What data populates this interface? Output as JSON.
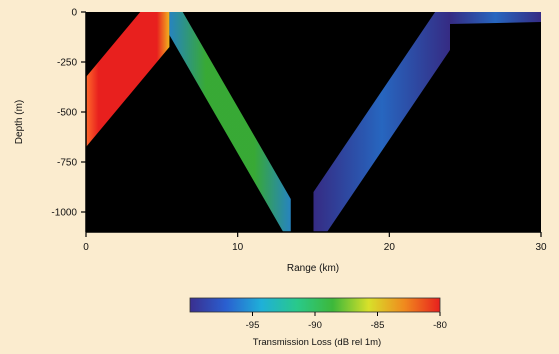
{
  "chart_data": {
    "type": "heatmap",
    "xlabel": "Range (km)",
    "ylabel": "Depth (m)",
    "xlim": [
      0,
      30
    ],
    "ylim": [
      -1100,
      0
    ],
    "x_ticks": [
      0,
      10,
      20,
      30
    ],
    "y_ticks": [
      0,
      -250,
      -500,
      -750,
      -1000
    ],
    "x_tick_labels": [
      "0",
      "10",
      "20",
      "30"
    ],
    "y_tick_labels": [
      "0",
      "-250",
      "-500",
      "-750",
      "-1000"
    ],
    "background_color": "#000000",
    "colorbar": {
      "label": "Transmission Loss (dB rel 1m)",
      "range": [
        -100,
        -80
      ],
      "ticks": [
        -95,
        -90,
        -85,
        -80
      ],
      "tick_labels": [
        "-95",
        "-90",
        "-85",
        "-80"
      ],
      "colormap": [
        "#3a2f8f",
        "#2a5fd0",
        "#1fb0d8",
        "#29c98a",
        "#3db83a",
        "#d8e02a",
        "#f08a1e",
        "#e8201e"
      ]
    },
    "series": [
      {
        "x": [
          0,
          5.5
        ],
        "depth": [
          -500,
          0
        ],
        "value": -80,
        "band_depth": 350
      },
      {
        "x": [
          5.5,
          13.5
        ],
        "depth": [
          0,
          -1050
        ],
        "value": -91,
        "band_depth": 230
      },
      {
        "x": [
          15,
          24
        ],
        "depth": [
          -1050,
          -40
        ],
        "value": -97,
        "band_depth": 300
      },
      {
        "x": [
          24,
          30
        ],
        "depth": [
          -30,
          -20
        ],
        "value": -97,
        "band_depth": 60
      }
    ]
  }
}
